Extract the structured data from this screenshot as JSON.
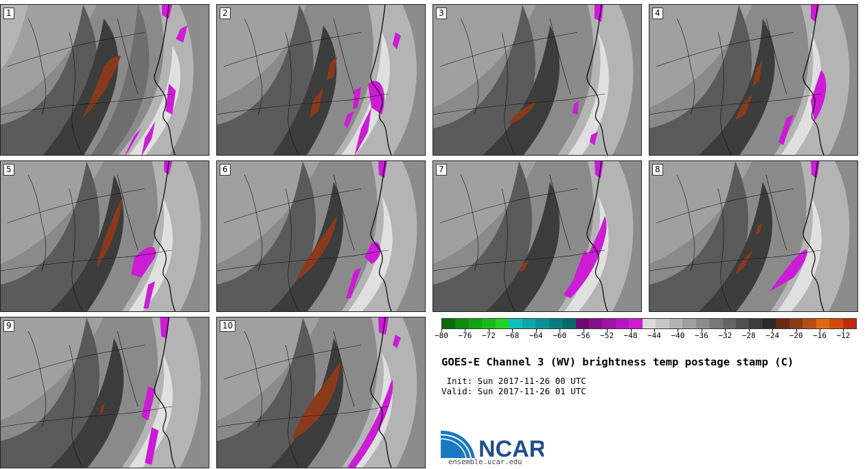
{
  "panels": [
    {
      "label": "1"
    },
    {
      "label": "2"
    },
    {
      "label": "3"
    },
    {
      "label": "4"
    },
    {
      "label": "5"
    },
    {
      "label": "6"
    },
    {
      "label": "7"
    },
    {
      "label": "8"
    },
    {
      "label": "9"
    },
    {
      "label": "10"
    }
  ],
  "colorbar": {
    "colors": [
      "#0b6b0b",
      "#0e8a0e",
      "#12a412",
      "#18bb18",
      "#22d422",
      "#0fbdbd",
      "#0aa8a8",
      "#099494",
      "#087f7f",
      "#066a6a",
      "#6e0a6e",
      "#85108a",
      "#9c14a4",
      "#b318bd",
      "#cc1cd6",
      "#dcdcdc",
      "#c8c8c8",
      "#b4b4b4",
      "#a0a0a0",
      "#8c8c8c",
      "#787878",
      "#646464",
      "#505050",
      "#3c3c3c",
      "#2a2a2a",
      "#6a2a10",
      "#8a3a14",
      "#b84e16",
      "#e06a10",
      "#d04a10",
      "#c02a10"
    ],
    "tick_labels": [
      "−80",
      "−76",
      "−72",
      "−68",
      "−64",
      "−60",
      "−56",
      "−52",
      "−48",
      "−44",
      "−40",
      "−36",
      "−32",
      "−28",
      "−24",
      "−20",
      "−16",
      "−12"
    ]
  },
  "title": "GOES-E Channel 3 (WV) brightness temp postage stamp (C)",
  "init_line": " Init: Sun 2017-11-26 00 UTC",
  "valid_line": "Valid: Sun 2017-11-26 01 UTC",
  "logo_text": "NCAR",
  "site_url": "ensemble.ucar.edu"
}
